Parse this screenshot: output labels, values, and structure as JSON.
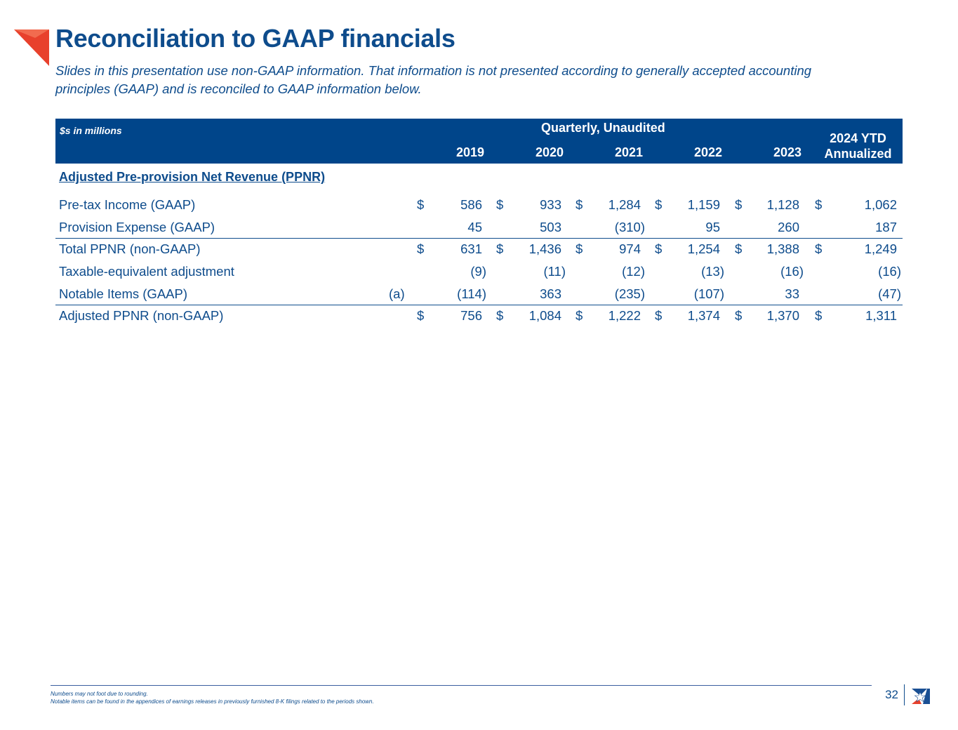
{
  "title": "Reconciliation to GAAP financials",
  "subtitle": "Slides in this presentation use non-GAAP information. That information is not presented according to generally accepted accounting principles (GAAP) and is reconciled to GAAP information below.",
  "table": {
    "units_label": "$s in millions",
    "group_label": "Quarterly, Unaudited",
    "years": [
      "2019",
      "2020",
      "2021",
      "2022",
      "2023"
    ],
    "ytd_label_line1": "2024 YTD",
    "ytd_label_line2": "Annualized",
    "section_title": "Adjusted Pre-provision Net Revenue (PPNR)",
    "rows": [
      {
        "label": "Pre-tax Income (GAAP)",
        "note": "",
        "currency": "$",
        "values": [
          "586",
          "933",
          "1,284",
          "1,159",
          "1,128",
          "1,062"
        ]
      },
      {
        "label": "Provision Expense (GAAP)",
        "note": "",
        "currency": "",
        "values": [
          "45",
          "503",
          "(310)",
          "95",
          "260",
          "187"
        ]
      },
      {
        "label": "Total PPNR (non-GAAP)",
        "note": "",
        "currency": "$",
        "values": [
          "631",
          "1,436",
          "974",
          "1,254",
          "1,388",
          "1,249"
        ]
      },
      {
        "label": "Taxable-equivalent adjustment",
        "note": "",
        "currency": "",
        "values": [
          "(9)",
          "(11)",
          "(12)",
          "(13)",
          "(16)",
          "(16)"
        ]
      },
      {
        "label": "Notable Items (GAAP)",
        "note": "(a)",
        "currency": "",
        "values": [
          "(114)",
          "363",
          "(235)",
          "(107)",
          "33",
          "(47)"
        ]
      },
      {
        "label": "Adjusted PPNR (non-GAAP)",
        "note": "",
        "currency": "$",
        "values": [
          "756",
          "1,084",
          "1,222",
          "1,374",
          "1,370",
          "1,311"
        ]
      }
    ]
  },
  "footer": {
    "note1": "Numbers may not foot due to rounding.",
    "note2": "Notable items can be found in the appendices of earnings releases in previously furnished 8-K filings related to the periods shown.",
    "page_number": "32"
  },
  "colors": {
    "brand_blue": "#0e4c8c",
    "header_band": "#00458a",
    "accent_red": "#e8412c"
  }
}
